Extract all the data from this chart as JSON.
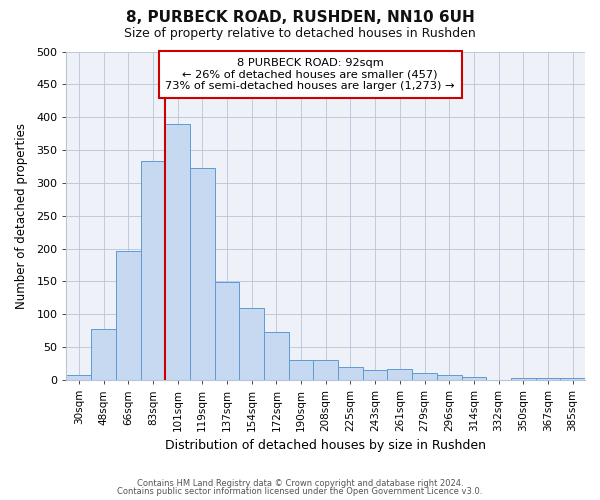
{
  "title": "8, PURBECK ROAD, RUSHDEN, NN10 6UH",
  "subtitle": "Size of property relative to detached houses in Rushden",
  "xlabel": "Distribution of detached houses by size in Rushden",
  "ylabel": "Number of detached properties",
  "bar_labels": [
    "30sqm",
    "48sqm",
    "66sqm",
    "83sqm",
    "101sqm",
    "119sqm",
    "137sqm",
    "154sqm",
    "172sqm",
    "190sqm",
    "208sqm",
    "225sqm",
    "243sqm",
    "261sqm",
    "279sqm",
    "296sqm",
    "314sqm",
    "332sqm",
    "350sqm",
    "367sqm",
    "385sqm"
  ],
  "bar_values": [
    8,
    78,
    197,
    333,
    390,
    322,
    149,
    109,
    73,
    30,
    30,
    20,
    15,
    17,
    10,
    8,
    5,
    0,
    3,
    3,
    3
  ],
  "bar_color": "#c6d9f0",
  "bar_edge_color": "#5b9bd5",
  "ylim": [
    0,
    500
  ],
  "yticks": [
    0,
    50,
    100,
    150,
    200,
    250,
    300,
    350,
    400,
    450,
    500
  ],
  "vline_x_index": 4,
  "vline_color": "#cc0000",
  "annotation_title": "8 PURBECK ROAD: 92sqm",
  "annotation_line1": "← 26% of detached houses are smaller (457)",
  "annotation_line2": "73% of semi-detached houses are larger (1,273) →",
  "annotation_box_color": "#ffffff",
  "annotation_box_edge": "#cc0000",
  "footer1": "Contains HM Land Registry data © Crown copyright and database right 2024.",
  "footer2": "Contains public sector information licensed under the Open Government Licence v3.0.",
  "background_color": "#ffffff",
  "plot_bg_color": "#eef2f8",
  "grid_color": "#b8c4d8"
}
